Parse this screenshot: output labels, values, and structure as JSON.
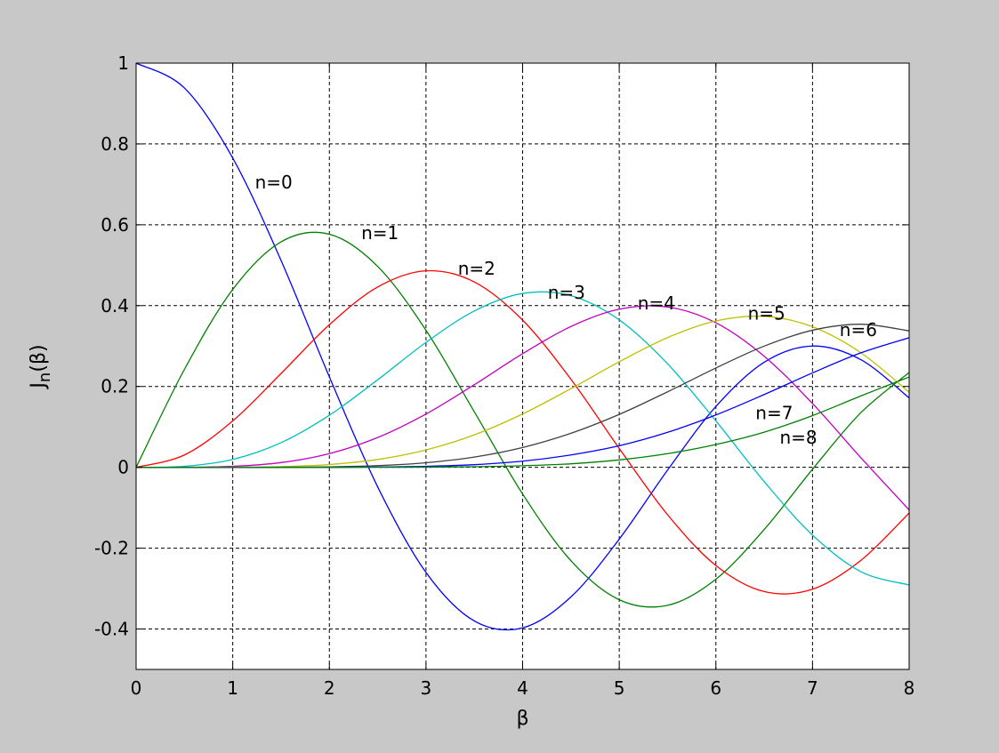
{
  "window": {
    "background": "#c8c8c8"
  },
  "chart_data": {
    "type": "line",
    "title": "",
    "xlabel": "β",
    "ylabel_main": "J",
    "ylabel_sub": "n",
    "ylabel_tail": "(β)",
    "xlim": [
      0,
      8
    ],
    "ylim": [
      -0.5,
      1
    ],
    "xticks": [
      0,
      1,
      2,
      3,
      4,
      5,
      6,
      7,
      8
    ],
    "xtick_labels": [
      "0",
      "1",
      "2",
      "3",
      "4",
      "5",
      "6",
      "7",
      "8"
    ],
    "yticks": [
      -0.4,
      -0.2,
      0,
      0.2,
      0.4,
      0.6,
      0.8,
      1
    ],
    "ytick_labels": [
      "-0.4",
      "-0.2",
      "0",
      "0.2",
      "0.4",
      "0.6",
      "0.8",
      "1"
    ],
    "grid": true,
    "grid_style": "dashed",
    "x": [
      0,
      0.5,
      1,
      1.5,
      2,
      2.5,
      3,
      3.5,
      4,
      4.5,
      5,
      5.5,
      6,
      6.5,
      7,
      7.5,
      8
    ],
    "series": [
      {
        "name": "n=0",
        "color": "#0000ff",
        "values": [
          1.0,
          0.9385,
          0.7652,
          0.5118,
          0.2239,
          -0.0484,
          -0.2601,
          -0.3801,
          -0.3971,
          -0.3205,
          -0.1776,
          -0.0068,
          0.1506,
          0.2601,
          0.3001,
          0.2663,
          0.1717
        ]
      },
      {
        "name": "n=1",
        "color": "#008000",
        "values": [
          0.0,
          0.2423,
          0.4401,
          0.5579,
          0.5767,
          0.4971,
          0.3391,
          0.1374,
          -0.066,
          -0.2311,
          -0.3276,
          -0.3414,
          -0.2767,
          -0.1538,
          -0.0047,
          0.1352,
          0.2346
        ]
      },
      {
        "name": "n=2",
        "color": "#ff0000",
        "values": [
          0.0,
          0.0306,
          0.1149,
          0.2321,
          0.3528,
          0.4461,
          0.4861,
          0.4586,
          0.3641,
          0.2178,
          0.0466,
          -0.1173,
          -0.2429,
          -0.3074,
          -0.3014,
          -0.2303,
          -0.113
        ]
      },
      {
        "name": "n=3",
        "color": "#00bfbf",
        "values": [
          0.0,
          0.0026,
          0.0196,
          0.061,
          0.1289,
          0.2166,
          0.3091,
          0.3868,
          0.4302,
          0.4247,
          0.3648,
          0.2561,
          0.1148,
          -0.0353,
          -0.1676,
          -0.2581,
          -0.2911
        ]
      },
      {
        "name": "n=4",
        "color": "#bf00bf",
        "values": [
          0.0,
          0.0002,
          0.0025,
          0.0118,
          0.034,
          0.0738,
          0.132,
          0.2044,
          0.2811,
          0.3484,
          0.3912,
          0.3967,
          0.3576,
          0.2748,
          0.1578,
          0.0238,
          -0.1054
        ]
      },
      {
        "name": "n=5",
        "color": "#bfbf00",
        "values": [
          0.0,
          0.0,
          0.0002,
          0.0018,
          0.007,
          0.0195,
          0.043,
          0.0804,
          0.1321,
          0.1947,
          0.2611,
          0.3209,
          0.3621,
          0.3736,
          0.3479,
          0.2835,
          0.1858
        ]
      },
      {
        "name": "n=6",
        "color": "#404040",
        "values": [
          0.0,
          0.0,
          0.0,
          0.0002,
          0.0012,
          0.0042,
          0.0114,
          0.0254,
          0.0491,
          0.0843,
          0.131,
          0.1868,
          0.2458,
          0.2999,
          0.3392,
          0.3541,
          0.3376
        ]
      },
      {
        "name": "n=7",
        "color": "#0000ff",
        "values": [
          0.0,
          0.0,
          0.0,
          0.0,
          0.0002,
          0.0008,
          0.0025,
          0.0066,
          0.0152,
          0.0307,
          0.0534,
          0.0866,
          0.1296,
          0.1801,
          0.2336,
          0.2832,
          0.3206
        ]
      },
      {
        "name": "n=8",
        "color": "#008000",
        "values": [
          0.0,
          0.0,
          0.0,
          0.0,
          0.0,
          0.0001,
          0.0005,
          0.0015,
          0.004,
          0.0088,
          0.0184,
          0.0339,
          0.0565,
          0.087,
          0.128,
          0.1766,
          0.2235
        ]
      }
    ],
    "annotations": [
      {
        "text": "n=0",
        "x": 1.23,
        "y": 0.705
      },
      {
        "text": "n=1",
        "x": 2.33,
        "y": 0.58
      },
      {
        "text": "n=2",
        "x": 3.33,
        "y": 0.492
      },
      {
        "text": "n=3",
        "x": 4.26,
        "y": 0.433
      },
      {
        "text": "n=4",
        "x": 5.19,
        "y": 0.406
      },
      {
        "text": "n=5",
        "x": 6.33,
        "y": 0.381
      },
      {
        "text": "n=6",
        "x": 7.28,
        "y": 0.34
      },
      {
        "text": "n=7",
        "x": 6.41,
        "y": 0.134
      },
      {
        "text": "n=8",
        "x": 6.66,
        "y": 0.074
      }
    ]
  }
}
